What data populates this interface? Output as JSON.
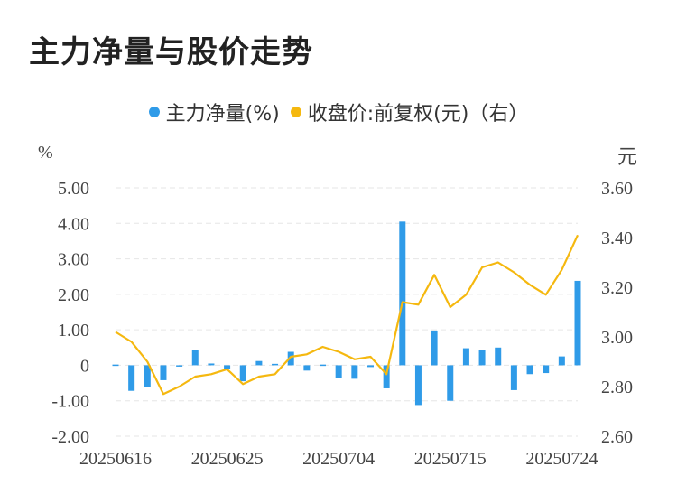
{
  "title": "主力净量与股价走势",
  "legend": [
    {
      "label": "主力净量(%)",
      "color": "#2f9be8"
    },
    {
      "label": "收盘价:前复权(元)（右）",
      "color": "#f5b80f"
    }
  ],
  "units": {
    "left": "%",
    "right": "元"
  },
  "chart_data": {
    "type": "bar+line",
    "title": "主力净量与股价走势",
    "left_axis": {
      "unit": "%",
      "ylim": [
        -2,
        5
      ],
      "ticks": [
        "5.00",
        "4.00",
        "3.00",
        "2.00",
        "1.00",
        "0",
        "-1.00",
        "-2.00"
      ],
      "tick_values": [
        5,
        4,
        3,
        2,
        1,
        0,
        -1,
        -2
      ]
    },
    "right_axis": {
      "unit": "元",
      "ylim": [
        2.6,
        3.6
      ],
      "ticks": [
        "3.60",
        "3.40",
        "3.20",
        "3.00",
        "2.80",
        "2.60"
      ],
      "tick_values": [
        3.6,
        3.4,
        3.2,
        3.0,
        2.8,
        2.6
      ]
    },
    "x_tick_labels": [
      "20250616",
      "20250625",
      "20250704",
      "20250715",
      "20250724"
    ],
    "x_tick_indices": [
      0,
      7,
      14,
      21,
      28
    ],
    "grid": true,
    "legend_position": "top-center",
    "series": [
      {
        "name": "主力净量(%)",
        "type": "bar",
        "color": "#2f9be8",
        "values": [
          0.02,
          -0.72,
          -0.6,
          -0.42,
          0.0,
          0.42,
          0.05,
          -0.1,
          -0.45,
          0.12,
          0.04,
          0.38,
          -0.15,
          0.02,
          -0.35,
          -0.38,
          -0.05,
          -0.65,
          4.05,
          -1.12,
          0.98,
          -1.0,
          0.48,
          0.44,
          0.5,
          -0.7,
          -0.25,
          -0.22,
          0.25,
          2.38
        ]
      },
      {
        "name": "收盘价:前复权(元)（右）",
        "type": "line",
        "color": "#f5b80f",
        "values": [
          3.02,
          2.98,
          2.9,
          2.77,
          2.8,
          2.84,
          2.85,
          2.87,
          2.81,
          2.84,
          2.85,
          2.92,
          2.93,
          2.96,
          2.94,
          2.91,
          2.92,
          2.85,
          3.14,
          3.13,
          3.25,
          3.12,
          3.17,
          3.28,
          3.3,
          3.26,
          3.21,
          3.17,
          3.27,
          3.41
        ]
      }
    ]
  }
}
